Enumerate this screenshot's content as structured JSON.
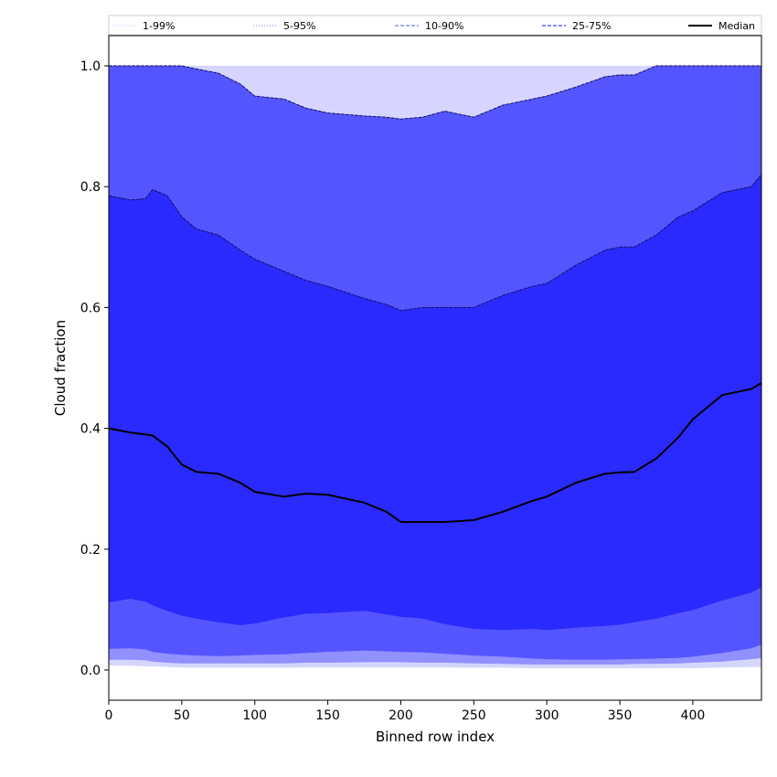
{
  "chart_data": {
    "type": "area",
    "xlabel": "Binned row index",
    "ylabel": "Cloud fraction",
    "xlim": [
      0,
      447
    ],
    "ylim": [
      -0.05,
      1.05
    ],
    "xticks": [
      0,
      50,
      100,
      150,
      200,
      250,
      300,
      350,
      400
    ],
    "yticks": [
      0.0,
      0.2,
      0.4,
      0.6,
      0.8,
      1.0
    ],
    "grid": false,
    "legend_position": "top",
    "x": [
      0,
      15,
      25,
      30,
      40,
      50,
      60,
      75,
      90,
      100,
      120,
      135,
      150,
      175,
      190,
      200,
      215,
      230,
      250,
      270,
      290,
      300,
      320,
      340,
      350,
      360,
      375,
      390,
      400,
      420,
      440,
      447
    ],
    "series": [
      {
        "name": "1-99%",
        "color": "#d5d5ff",
        "lower": [
          0.007,
          0.007,
          0.006,
          0.006,
          0.005,
          0.004,
          0.004,
          0.004,
          0.004,
          0.004,
          0.004,
          0.004,
          0.004,
          0.004,
          0.004,
          0.004,
          0.004,
          0.004,
          0.004,
          0.004,
          0.003,
          0.003,
          0.003,
          0.003,
          0.003,
          0.003,
          0.003,
          0.003,
          0.003,
          0.004,
          0.005,
          0.005
        ],
        "upper": [
          1.0,
          1.0,
          1.0,
          1.0,
          1.0,
          1.0,
          1.0,
          1.0,
          1.0,
          1.0,
          1.0,
          1.0,
          1.0,
          1.0,
          1.0,
          1.0,
          1.0,
          1.0,
          1.0,
          1.0,
          1.0,
          1.0,
          1.0,
          1.0,
          1.0,
          1.0,
          1.0,
          1.0,
          1.0,
          1.0,
          1.0,
          1.0
        ]
      },
      {
        "name": "5-95%",
        "color": "#9090ff",
        "lower": [
          0.017,
          0.017,
          0.016,
          0.014,
          0.012,
          0.011,
          0.011,
          0.011,
          0.011,
          0.011,
          0.011,
          0.012,
          0.012,
          0.013,
          0.013,
          0.013,
          0.012,
          0.012,
          0.011,
          0.01,
          0.009,
          0.009,
          0.009,
          0.009,
          0.009,
          0.01,
          0.01,
          0.011,
          0.012,
          0.014,
          0.018,
          0.02
        ],
        "upper": [
          1.0,
          1.0,
          1.0,
          1.0,
          1.0,
          1.0,
          0.995,
          0.988,
          0.97,
          0.95,
          0.945,
          0.93,
          0.922,
          0.917,
          0.915,
          0.912,
          0.915,
          0.925,
          0.915,
          0.935,
          0.945,
          0.95,
          0.965,
          0.982,
          0.985,
          0.985,
          1.0,
          1.0,
          1.0,
          1.0,
          1.0,
          1.0
        ]
      },
      {
        "name": "10-90%",
        "color": "#5555ff",
        "lower": [
          0.035,
          0.036,
          0.034,
          0.03,
          0.027,
          0.025,
          0.024,
          0.023,
          0.024,
          0.025,
          0.026,
          0.028,
          0.03,
          0.032,
          0.031,
          0.03,
          0.029,
          0.027,
          0.024,
          0.022,
          0.019,
          0.018,
          0.017,
          0.017,
          0.018,
          0.018,
          0.019,
          0.02,
          0.022,
          0.028,
          0.036,
          0.042
        ],
        "upper": [
          1.0,
          1.0,
          1.0,
          1.0,
          1.0,
          1.0,
          0.995,
          0.988,
          0.97,
          0.95,
          0.945,
          0.93,
          0.922,
          0.917,
          0.915,
          0.912,
          0.915,
          0.925,
          0.915,
          0.935,
          0.945,
          0.95,
          0.965,
          0.982,
          0.985,
          0.985,
          1.0,
          1.0,
          1.0,
          1.0,
          1.0,
          1.0
        ]
      },
      {
        "name": "25-75%",
        "color": "#2a2aff",
        "lower": [
          0.112,
          0.118,
          0.113,
          0.107,
          0.098,
          0.09,
          0.085,
          0.079,
          0.074,
          0.077,
          0.087,
          0.093,
          0.094,
          0.098,
          0.092,
          0.088,
          0.085,
          0.076,
          0.068,
          0.066,
          0.068,
          0.066,
          0.07,
          0.073,
          0.075,
          0.079,
          0.085,
          0.094,
          0.099,
          0.115,
          0.128,
          0.137
        ],
        "upper": [
          0.785,
          0.778,
          0.78,
          0.795,
          0.785,
          0.75,
          0.73,
          0.72,
          0.695,
          0.68,
          0.66,
          0.645,
          0.635,
          0.615,
          0.605,
          0.595,
          0.6,
          0.6,
          0.6,
          0.62,
          0.635,
          0.64,
          0.67,
          0.695,
          0.7,
          0.7,
          0.72,
          0.75,
          0.76,
          0.79,
          0.8,
          0.82
        ]
      }
    ],
    "median": {
      "name": "Median",
      "color": "#000000",
      "values": [
        0.4,
        0.393,
        0.39,
        0.388,
        0.37,
        0.34,
        0.328,
        0.325,
        0.31,
        0.295,
        0.287,
        0.292,
        0.29,
        0.277,
        0.262,
        0.245,
        0.245,
        0.245,
        0.248,
        0.262,
        0.28,
        0.287,
        0.31,
        0.325,
        0.327,
        0.328,
        0.35,
        0.385,
        0.415,
        0.455,
        0.465,
        0.475
      ]
    },
    "legend": [
      {
        "label": "1-99%",
        "color": "#d5d5ff",
        "style": "dotted"
      },
      {
        "label": "5-95%",
        "color": "#9090ff",
        "style": "dotted"
      },
      {
        "label": "10-90%",
        "color": "#7777ff",
        "style": "dashed"
      },
      {
        "label": "25-75%",
        "color": "#4444ff",
        "style": "dashed"
      },
      {
        "label": "Median",
        "color": "#000000",
        "style": "solid"
      }
    ]
  }
}
